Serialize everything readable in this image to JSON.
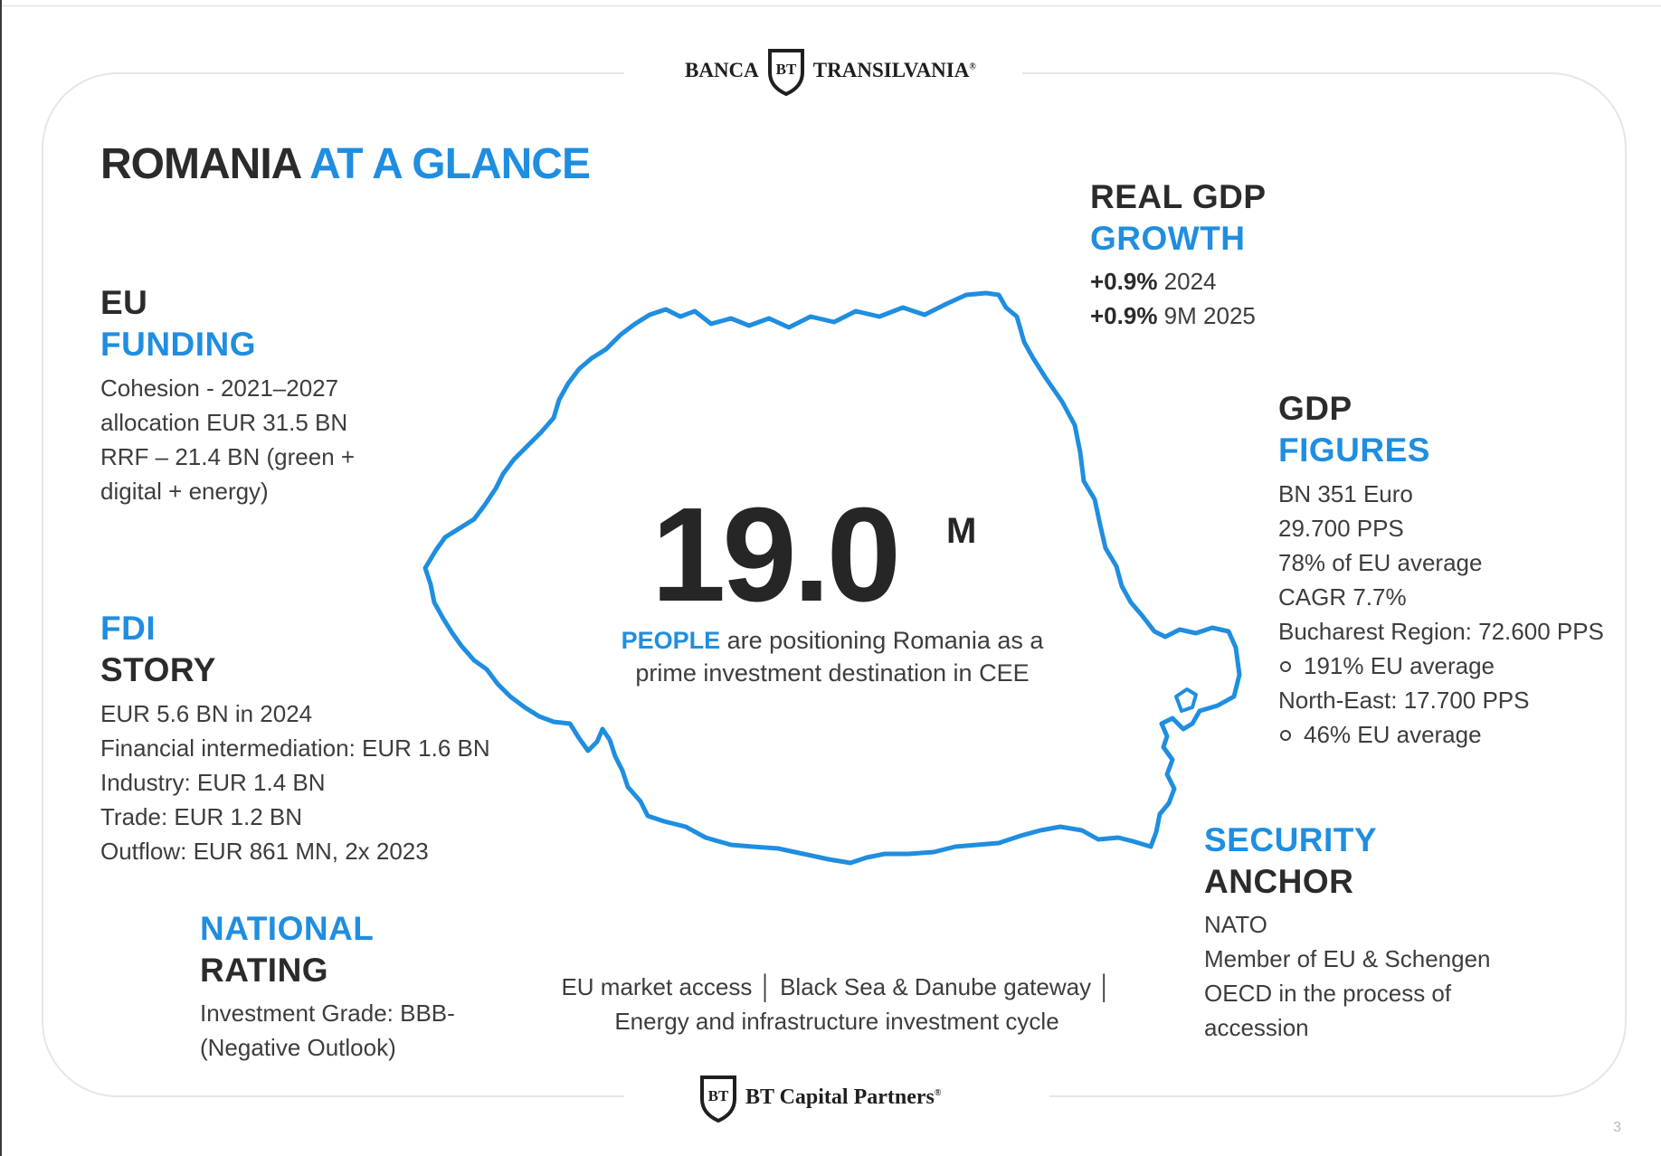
{
  "header": {
    "brand_left": "BANCA",
    "brand_mark": "BT",
    "brand_right": "TRANSILVANIA",
    "registered": "®"
  },
  "title": {
    "part1": "ROMANIA ",
    "part2": "AT A GLANCE"
  },
  "eu_funding": {
    "head1": "EU",
    "head2": "FUNDING",
    "lines": [
      "Cohesion - 2021–2027",
      "allocation EUR 31.5 BN",
      "RRF – 21.4 BN (green +",
      "digital + energy)"
    ]
  },
  "fdi": {
    "head1": "FDI",
    "head2": "STORY",
    "lines": [
      "EUR 5.6 BN in 2024",
      "Financial intermediation: EUR 1.6 BN",
      "Industry: EUR 1.4 BN",
      "Trade: EUR 1.2 BN",
      "Outflow: EUR 861 MN,  2x 2023"
    ]
  },
  "rating": {
    "head1": "NATIONAL",
    "head2": "RATING",
    "lines": [
      "Investment Grade: BBB-",
      "(Negative Outlook)"
    ]
  },
  "gdp_growth": {
    "head1": "REAL GDP",
    "head2": "GROWTH",
    "rows": [
      {
        "value": "+0.9%",
        "period": " 2024"
      },
      {
        "value": "+0.9%",
        "period": " 9M 2025"
      }
    ]
  },
  "gdp_figures": {
    "head1": "GDP",
    "head2": "FIGURES",
    "lines": [
      "BN 351 Euro",
      "29.700 PPS",
      "78% of EU average",
      "CAGR 7.7%",
      "Bucharest Region: 72.600 PPS",
      "191% EU average",
      "North-East: 17.700 PPS",
      "46% EU average"
    ]
  },
  "security": {
    "head1": "SECURITY",
    "head2": "ANCHOR",
    "lines": [
      "NATO",
      "Member of EU & Schengen",
      "OECD in the process of",
      "accession"
    ]
  },
  "center": {
    "population": "19.0",
    "suffix": "M",
    "people_word": "PEOPLE",
    "people_rest": " are positioning Romania as a",
    "people_line2": "prime investment destination in CEE"
  },
  "tagline": {
    "line1": "EU market access │ Black Sea & Danube gateway │",
    "line2": "Energy and infrastructure investment cycle"
  },
  "footer": {
    "brand_mark": "BT",
    "brand_name": "BT Capital Partners",
    "registered": "®"
  },
  "page_number": "3",
  "colors": {
    "accent": "#1f8ee0",
    "text": "#2b2b2b",
    "map_outline": "#1f8ee0"
  },
  "icons": {
    "header_logo": "bt-shield-logo-icon",
    "footer_logo": "bt-shield-logo-icon",
    "map": "romania-map-outline"
  }
}
